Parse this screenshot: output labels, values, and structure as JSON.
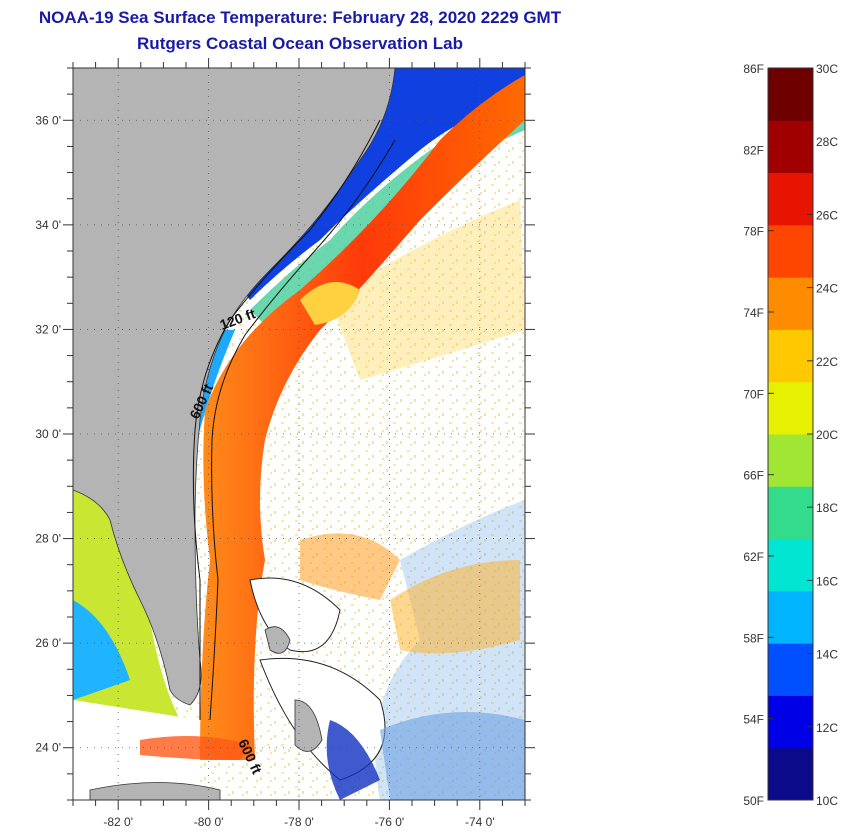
{
  "header": {
    "title": "NOAA-19 Sea Surface Temperature:  February 28, 2020 2229 GMT",
    "subtitle": "Rutgers Coastal Ocean Observation Lab"
  },
  "map": {
    "lon_range": [
      -83,
      -73
    ],
    "lat_range": [
      23,
      37
    ],
    "lat_ticks": [
      {
        "value": 36,
        "label": "36 0'"
      },
      {
        "value": 34,
        "label": "34 0'"
      },
      {
        "value": 32,
        "label": "32 0'"
      },
      {
        "value": 30,
        "label": "30 0'"
      },
      {
        "value": 28,
        "label": "28 0'"
      },
      {
        "value": 26,
        "label": "26 0'"
      },
      {
        "value": 24,
        "label": "24 0'"
      }
    ],
    "lon_ticks": [
      {
        "value": -82,
        "label": "-82 0'"
      },
      {
        "value": -80,
        "label": "-80 0'"
      },
      {
        "value": -78,
        "label": "-78 0'"
      },
      {
        "value": -76,
        "label": "-76 0'"
      },
      {
        "value": -74,
        "label": "-74 0'"
      }
    ],
    "contour_labels": [
      "120 ft",
      "600 ft",
      "600 ft"
    ],
    "land_color": "#b4b4b4",
    "cloud_color": "#ffffff"
  },
  "colorbar": {
    "fahrenheit_labels": [
      "86F",
      "82F",
      "78F",
      "74F",
      "70F",
      "66F",
      "62F",
      "58F",
      "54F",
      "50F"
    ],
    "celsius_labels": [
      "30C",
      "28C",
      "26C",
      "24C",
      "22C",
      "20C",
      "18C",
      "16C",
      "14C",
      "12C",
      "10C"
    ],
    "range_c": [
      10,
      30
    ],
    "colors": [
      "#0a0a8a",
      "#0000e6",
      "#0050ff",
      "#00b4ff",
      "#00e6d2",
      "#32dc8c",
      "#a0e632",
      "#e6f000",
      "#ffc800",
      "#ff8c00",
      "#ff4600",
      "#e61400",
      "#a00000",
      "#6e0000"
    ]
  }
}
